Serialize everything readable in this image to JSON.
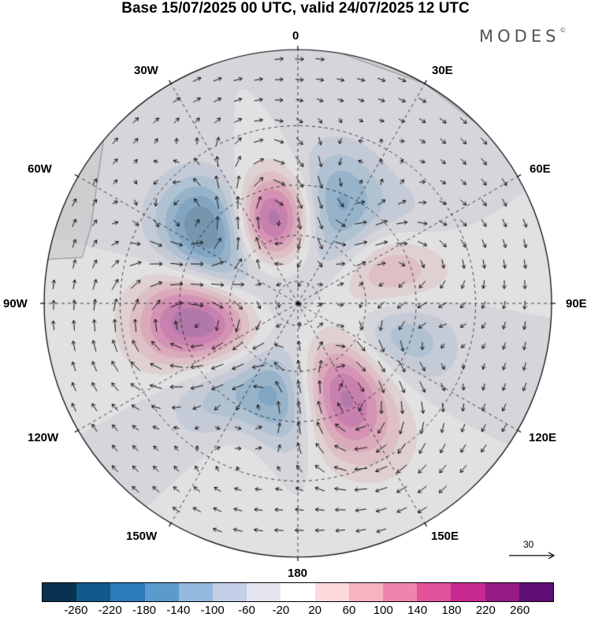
{
  "title": "Base 15/07/2025 00 UTC, valid 24/07/2025 12 UTC",
  "brand": "MODES",
  "brand_mark": "©",
  "longitude_labels": {
    "lon_0": "0",
    "lon_30e": "30E",
    "lon_60e": "60E",
    "lon_90e": "90E",
    "lon_120e": "120E",
    "lon_150e": "150E",
    "lon_180": "180",
    "lon_150w": "150W",
    "lon_120w": "120W",
    "lon_90w": "90W",
    "lon_60w": "60W",
    "lon_30w": "30W"
  },
  "reference_vector": {
    "label": "30"
  },
  "colorbar": {
    "colors": [
      "#08324f",
      "#125a8c",
      "#2d7ab8",
      "#5b9acc",
      "#93b9dd",
      "#c2cfe6",
      "#e4e4f1",
      "#ffffff",
      "#fbd9dc",
      "#f6b3c2",
      "#ef85ac",
      "#e2529b",
      "#c72890",
      "#961a84",
      "#5d0d73"
    ],
    "ticks": [
      "-260",
      "-220",
      "-180",
      "-140",
      "-100",
      "-60",
      "-20",
      "20",
      "60",
      "100",
      "140",
      "180",
      "220",
      "260"
    ]
  },
  "map_colors": {
    "land": "#e6e6e6",
    "coast": "#777777",
    "grid": "#000000",
    "vector": "#111111"
  },
  "anomaly_field": [
    {
      "lon": -20,
      "lat": 55,
      "value": 280
    },
    {
      "lon": -10,
      "lat": 50,
      "value": 150
    },
    {
      "lon": -45,
      "lat": 45,
      "value": -150
    },
    {
      "lon": -50,
      "lat": 35,
      "value": -140
    },
    {
      "lon": -70,
      "lat": 55,
      "value": -110
    },
    {
      "lon": -65,
      "lat": 70,
      "value": -60
    },
    {
      "lon": -100,
      "lat": 35,
      "value": 130
    },
    {
      "lon": -105,
      "lat": 55,
      "value": 220
    },
    {
      "lon": -90,
      "lat": 45,
      "value": 90
    },
    {
      "lon": -140,
      "lat": 35,
      "value": -90
    },
    {
      "lon": -130,
      "lat": 50,
      "value": -50
    },
    {
      "lon": -160,
      "lat": 30,
      "value": 80
    },
    {
      "lon": -170,
      "lat": 55,
      "value": -150
    },
    {
      "lon": -175,
      "lat": 40,
      "value": -140
    },
    {
      "lon": 158,
      "lat": 55,
      "value": 180
    },
    {
      "lon": 160,
      "lat": 40,
      "value": 160
    },
    {
      "lon": 130,
      "lat": 45,
      "value": 40
    },
    {
      "lon": 105,
      "lat": 50,
      "value": -120
    },
    {
      "lon": 110,
      "lat": 35,
      "value": -60
    },
    {
      "lon": 70,
      "lat": 45,
      "value": 130
    },
    {
      "lon": 80,
      "lat": 60,
      "value": 60
    },
    {
      "lon": 55,
      "lat": 35,
      "value": -70
    },
    {
      "lon": 10,
      "lat": 60,
      "value": -140
    },
    {
      "lon": 20,
      "lat": 45,
      "value": -120
    },
    {
      "lon": 15,
      "lat": 35,
      "value": -60
    },
    {
      "lon": 75,
      "lat": 30,
      "value": 20
    },
    {
      "lon": 150,
      "lat": 25,
      "value": 60
    }
  ]
}
